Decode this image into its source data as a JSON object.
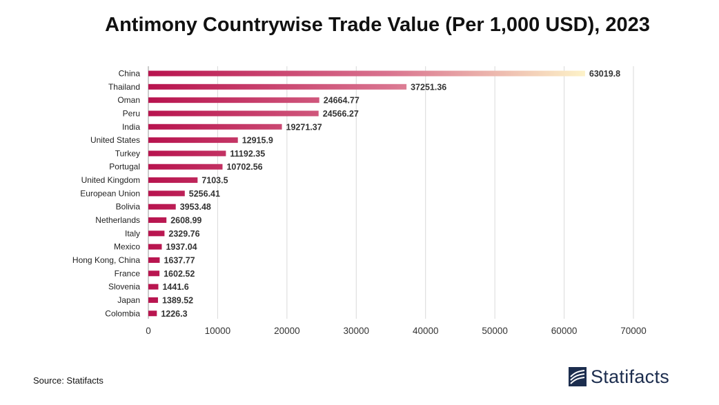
{
  "chart_data": {
    "type": "bar",
    "orientation": "horizontal",
    "title": "Antimony Countrywise Trade Value (Per 1,000 USD), 2023",
    "categories": [
      "China",
      "Thailand",
      "Oman",
      "Peru",
      "India",
      "United States",
      "Turkey",
      "Portugal",
      "United Kingdom",
      "European Union",
      "Bolivia",
      "Netherlands",
      "Italy",
      "Mexico",
      "Hong Kong, China",
      "France",
      "Slovenia",
      "Japan",
      "Colombia"
    ],
    "values": [
      63019.8,
      37251.36,
      24664.77,
      24566.27,
      19271.37,
      12915.9,
      11192.35,
      10702.56,
      7103.5,
      5256.41,
      3953.48,
      2608.99,
      2329.76,
      1937.04,
      1637.77,
      1602.52,
      1441.6,
      1389.52,
      1226.3
    ],
    "value_labels": [
      "63019.8",
      "37251.36",
      "24664.77",
      "24566.27",
      "19271.37",
      "12915.9",
      "11192.35",
      "10702.56",
      "7103.5",
      "5256.41",
      "3953.48",
      "2608.99",
      "2329.76",
      "1937.04",
      "1637.77",
      "1602.52",
      "1441.6",
      "1389.52",
      "1226.3"
    ],
    "xlim": [
      0,
      70000
    ],
    "xticks": [
      0,
      10000,
      20000,
      30000,
      40000,
      50000,
      60000,
      70000
    ],
    "xlabel": "",
    "ylabel": "",
    "grid": "vertical",
    "colors": {
      "bar_start": "#b8134e",
      "bar_end": "#fdf2c8",
      "grid": "#d9d9d9"
    }
  },
  "footer": {
    "source": "Source: Statifacts",
    "brand": "Statifacts",
    "brand_icon": "statifacts-logo-icon"
  }
}
